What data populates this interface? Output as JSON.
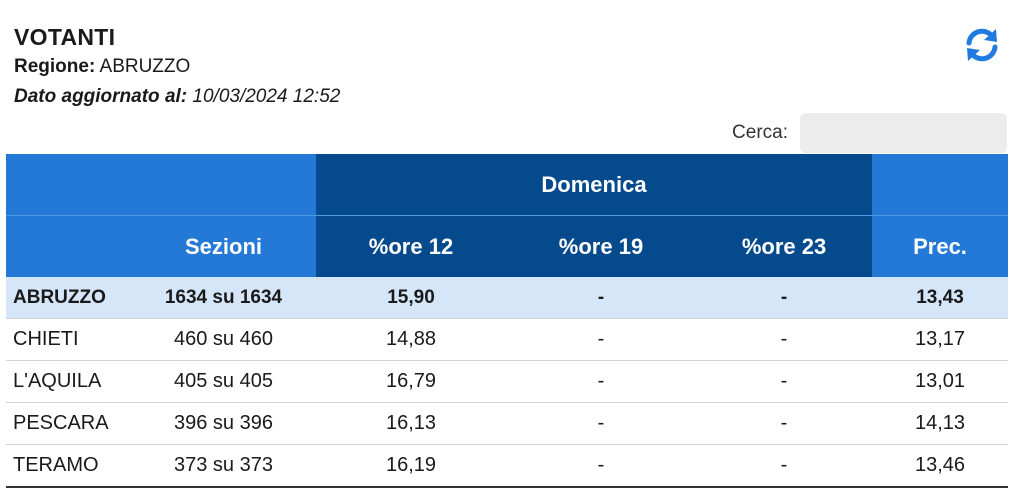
{
  "header": {
    "title": "VOTANTI",
    "region_label": "Regione:",
    "region_value": "ABRUZZO",
    "updated_label": "Dato aggiornato al:",
    "updated_value": "10/03/2024 12:52"
  },
  "toolbar": {
    "refresh_icon": "refresh-icon"
  },
  "search": {
    "label": "Cerca:",
    "value": "",
    "placeholder": ""
  },
  "table": {
    "group_header": "Domenica",
    "columns": {
      "sezioni": "Sezioni",
      "ore12": "%ore 12",
      "ore19": "%ore 19",
      "ore23": "%ore 23",
      "prec": "Prec."
    },
    "rows": [
      {
        "name": "ABRUZZO",
        "sezioni": "1634 su 1634",
        "ore12": "15,90",
        "ore19": "-",
        "ore23": "-",
        "prec": "13,43"
      },
      {
        "name": "CHIETI",
        "sezioni": "460 su 460",
        "ore12": "14,88",
        "ore19": "-",
        "ore23": "-",
        "prec": "13,17"
      },
      {
        "name": "L'AQUILA",
        "sezioni": "405 su 405",
        "ore12": "16,79",
        "ore19": "-",
        "ore23": "-",
        "prec": "13,01"
      },
      {
        "name": "PESCARA",
        "sezioni": "396 su 396",
        "ore12": "16,13",
        "ore19": "-",
        "ore23": "-",
        "prec": "14,13"
      },
      {
        "name": "TERAMO",
        "sezioni": "373 su 373",
        "ore12": "16,19",
        "ore19": "-",
        "ore23": "-",
        "prec": "13,46"
      }
    ]
  },
  "colors": {
    "header_blue": "#2479d6",
    "header_dark_blue": "#064a8e",
    "total_row_bg": "#d5e6f8",
    "refresh_icon": "#1f7be0"
  }
}
